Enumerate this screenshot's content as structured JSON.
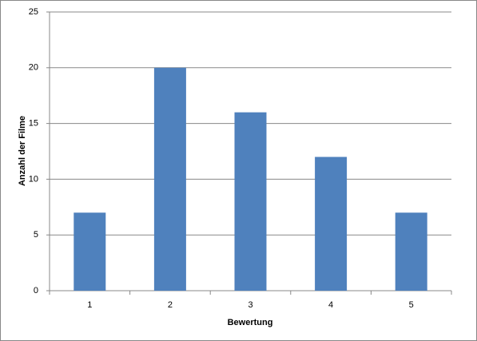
{
  "chart_data": {
    "type": "bar",
    "x_label": "Bewertung",
    "y_label": "Anzahl der Filme",
    "categories": [
      "1",
      "2",
      "3",
      "4",
      "5"
    ],
    "values": [
      7,
      20,
      16,
      12,
      7
    ],
    "color": "#4f81bd",
    "ylim": [
      0,
      25
    ],
    "yticks": [
      0,
      5,
      10,
      15,
      20,
      25
    ],
    "grid": true
  }
}
